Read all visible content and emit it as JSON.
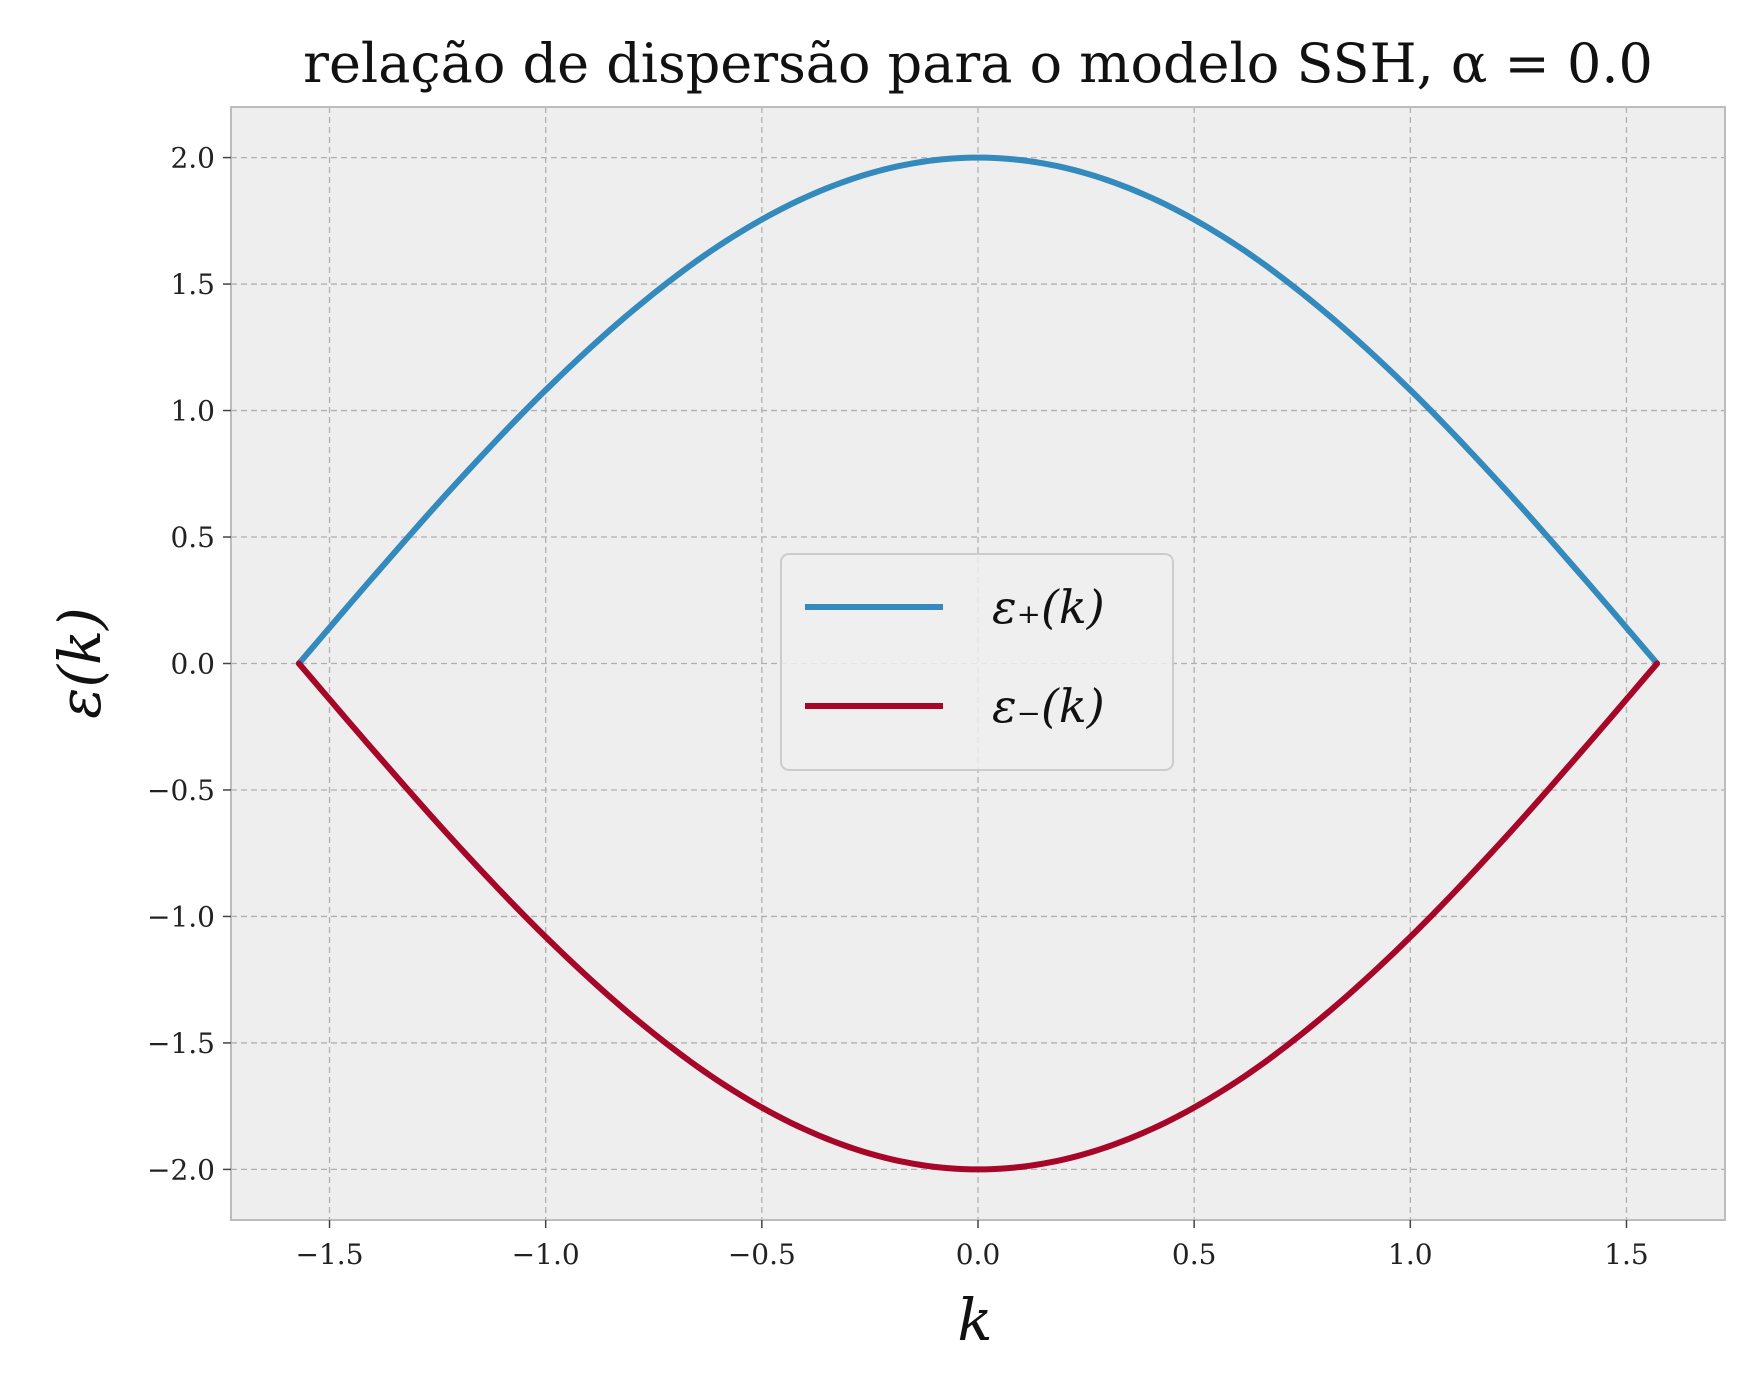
{
  "chart_data": {
    "type": "line",
    "title": "relação de dispersão para o modelo SSH, α = 0.0",
    "xlabel": "k",
    "ylabel": "ε(k)",
    "xlim": [
      -1.7279,
      1.7279
    ],
    "ylim": [
      -2.2,
      2.2
    ],
    "xticks": [
      -1.5,
      -1.0,
      -0.5,
      0.0,
      0.5,
      1.0,
      1.5
    ],
    "xtick_labels": [
      "−1.5",
      "−1.0",
      "−0.5",
      "0.0",
      "0.5",
      "1.0",
      "1.5"
    ],
    "yticks": [
      2.0,
      1.5,
      1.0,
      0.5,
      0.0,
      -0.5,
      -1.0,
      -1.5,
      -2.0
    ],
    "ytick_labels": [
      "2.0",
      "1.5",
      "1.0",
      "0.5",
      "0.0",
      "−0.5",
      "−1.0",
      "−1.5",
      "−2.0"
    ],
    "grid": true,
    "legend_position": "center",
    "colors": {
      "background": "#ffffff",
      "plot_area": "#eeeeee",
      "axes_edge": "#bcbcbc",
      "grid": "#b0b0b0"
    },
    "x": [
      -1.5708,
      -1.4,
      -1.2,
      -1.0,
      -0.8,
      -0.6,
      -0.4,
      -0.2,
      0.0,
      0.2,
      0.4,
      0.6,
      0.8,
      1.0,
      1.2,
      1.4,
      1.5708
    ],
    "series": [
      {
        "name": "ε₊(k)",
        "color": "#348abd",
        "values": [
          0.0,
          0.34,
          0.725,
          1.081,
          1.393,
          1.651,
          1.842,
          1.96,
          2.0,
          1.96,
          1.842,
          1.651,
          1.393,
          1.081,
          0.725,
          0.34,
          0.0
        ]
      },
      {
        "name": "ε₋(k)",
        "color": "#a60628",
        "values": [
          0.0,
          -0.34,
          -0.725,
          -1.081,
          -1.393,
          -1.651,
          -1.842,
          -1.96,
          -2.0,
          -1.96,
          -1.842,
          -1.651,
          -1.393,
          -1.081,
          -0.725,
          -0.34,
          0.0
        ]
      }
    ]
  }
}
